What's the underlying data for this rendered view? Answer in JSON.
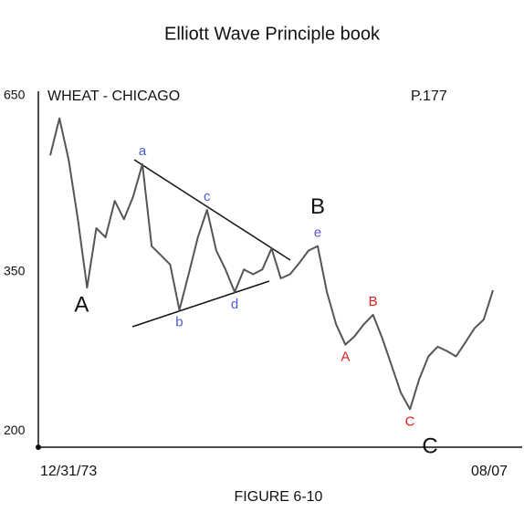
{
  "chart_data": {
    "type": "line",
    "title": "Elliott Wave Principle book",
    "subtitle": "WHEAT - CHICAGO",
    "page_label": "P.177",
    "caption": "FIGURE 6-10",
    "categories": [
      "12/31/73",
      null,
      null,
      null,
      null,
      null,
      null,
      null,
      null,
      null,
      null,
      null,
      null,
      null,
      null,
      null,
      null,
      null,
      null,
      null,
      null,
      null,
      null,
      null,
      null,
      null,
      null,
      null,
      null,
      null,
      null,
      null,
      null,
      null,
      null,
      null,
      null,
      null,
      null,
      null,
      null,
      null,
      null,
      null,
      null,
      null,
      null,
      null,
      "08/07"
    ],
    "series": [
      {
        "color": "#555555",
        "values": [
          527,
          600,
          519,
          421,
          331,
          408,
          395,
          449,
          421,
          456,
          511,
          383,
          371,
          359,
          306,
          347,
          395,
          435,
          377,
          353,
          326,
          353,
          347,
          353,
          380,
          342,
          347,
          361,
          377,
          383,
          326,
          291,
          271,
          279,
          291,
          301,
          277,
          252,
          229,
          216,
          240,
          260,
          269,
          265,
          260,
          273,
          287,
          296,
          328
        ]
      }
    ],
    "log_scale": true,
    "ylim": [
      189,
      660
    ],
    "yticks": [
      200,
      350,
      650
    ],
    "grid": false,
    "annotations": [
      {
        "text": "A",
        "color": "#111111",
        "point": 4
      },
      {
        "text": "a",
        "color": "#4a5bd6",
        "point": 10
      },
      {
        "text": "b",
        "color": "#4a5bd6",
        "point": 14
      },
      {
        "text": "c",
        "color": "#4a5bd6",
        "point": 17
      },
      {
        "text": "d",
        "color": "#4a5bd6",
        "point": 20
      },
      {
        "text": "e",
        "color": "#6a4fc9",
        "point": 29
      },
      {
        "text": "B",
        "color": "#111111",
        "point": 29
      },
      {
        "text": "A",
        "color": "#e02020",
        "point": 32
      },
      {
        "text": "B",
        "color": "#e02020",
        "point": 35
      },
      {
        "text": "C",
        "color": "#e02020",
        "point": 39
      },
      {
        "text": "C",
        "color": "#111111",
        "point": 39
      }
    ]
  }
}
